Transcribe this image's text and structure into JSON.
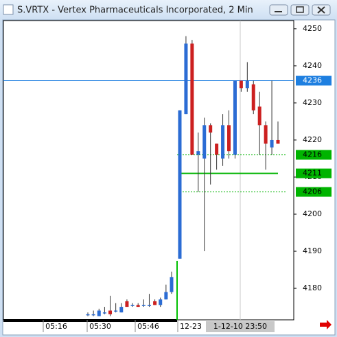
{
  "window": {
    "title": "S.VRTX - Vertex Pharmaceuticals Incorporated, 2 Min"
  },
  "chart_data": {
    "type": "candlestick",
    "up_color": "#2b6cd4",
    "down_color": "#cc2020",
    "open": [
      4173,
      4173,
      4172.5,
      4173.5,
      4174,
      4174,
      4173.5,
      4176.5,
      4175.5,
      4175.5,
      4175.5,
      4175.5,
      4176.5,
      4175.5,
      4177,
      4179,
      4188,
      4227,
      4246,
      4216,
      4215,
      4224,
      4219,
      4215,
      4224,
      4216,
      4236,
      4234,
      4235,
      4229,
      4224,
      4218,
      4220
    ],
    "high": [
      4173.5,
      4174,
      4174.5,
      4175,
      4178,
      4176,
      4176,
      4177,
      4176,
      4176,
      4177,
      4178.5,
      4177,
      4177.5,
      4181,
      4184.5,
      4228,
      4248,
      4247,
      4222,
      4226,
      4224.5,
      4219,
      4227,
      4228,
      4236,
      4236,
      4241,
      4236,
      4233,
      4225,
      4236,
      4225
    ],
    "low": [
      4172.5,
      4172.5,
      4172.5,
      4173,
      4172.5,
      4173.5,
      4173.5,
      4175,
      4175,
      4175,
      4175,
      4175,
      4175.5,
      4175,
      4177,
      4178.5,
      4188,
      4227,
      4216,
      4206,
      4190,
      4208,
      4212,
      4213,
      4215,
      4215,
      4233,
      4233,
      4227,
      4216,
      4212,
      4216,
      4219
    ],
    "close": [
      4173,
      4173,
      4174,
      4173.5,
      4173,
      4174,
      4175,
      4175,
      4175.5,
      4175,
      4175.5,
      4175.5,
      4175.5,
      4177,
      4179,
      4183,
      4228,
      4246,
      4216,
      4217,
      4224,
      4222,
      4216,
      4224,
      4217,
      4236,
      4234,
      4236,
      4228,
      4224,
      4219,
      4220,
      4219
    ],
    "ylim": [
      4171.5,
      4252.2
    ],
    "yticks": [
      4180,
      4190,
      4200,
      4210,
      4220,
      4230,
      4240,
      4250
    ],
    "xtick_labels": [
      "05:16",
      "05:30",
      "05:46",
      "12-23"
    ],
    "cursor_label": "1-12-10 23:50",
    "price_lines": [
      {
        "value": 4236,
        "color": "#1e7fe0",
        "style": "solid"
      },
      {
        "value": 4216,
        "color": "#00b400",
        "style": "dotted"
      },
      {
        "value": 4211,
        "color": "#00b400",
        "style": "solid"
      },
      {
        "value": 4206,
        "color": "#00b400",
        "style": "dotted"
      }
    ]
  }
}
